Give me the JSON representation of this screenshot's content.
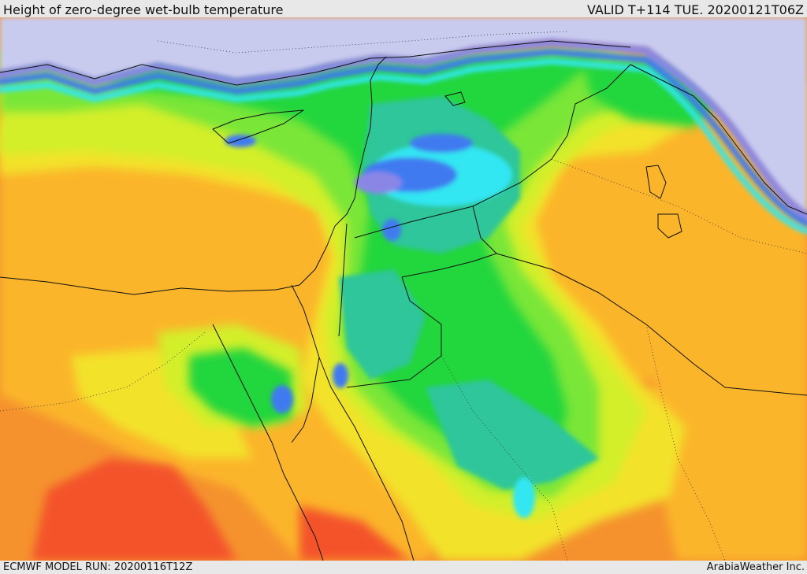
{
  "header": {
    "title": "Height of zero-degree wet-bulb temperature",
    "valid": "VALID T+114 TUE. 20200121T06Z"
  },
  "footer": {
    "model_run": "ECMWF MODEL RUN: 20200116T12Z",
    "credit": "ArabiaWeather Inc."
  },
  "colors": {
    "sea_below_ground": "#c9cbee",
    "violet": "#8a86e6",
    "blue": "#3f7af0",
    "cyan": "#33e6f2",
    "teal": "#2fc69a",
    "green": "#23d63c",
    "light_green": "#7ae637",
    "yellow_green": "#d3ef2c",
    "yellow": "#f3e22a",
    "orange_light": "#fbb52a",
    "orange": "#f5922e",
    "red_orange": "#f4532a",
    "border": "#111111"
  }
}
